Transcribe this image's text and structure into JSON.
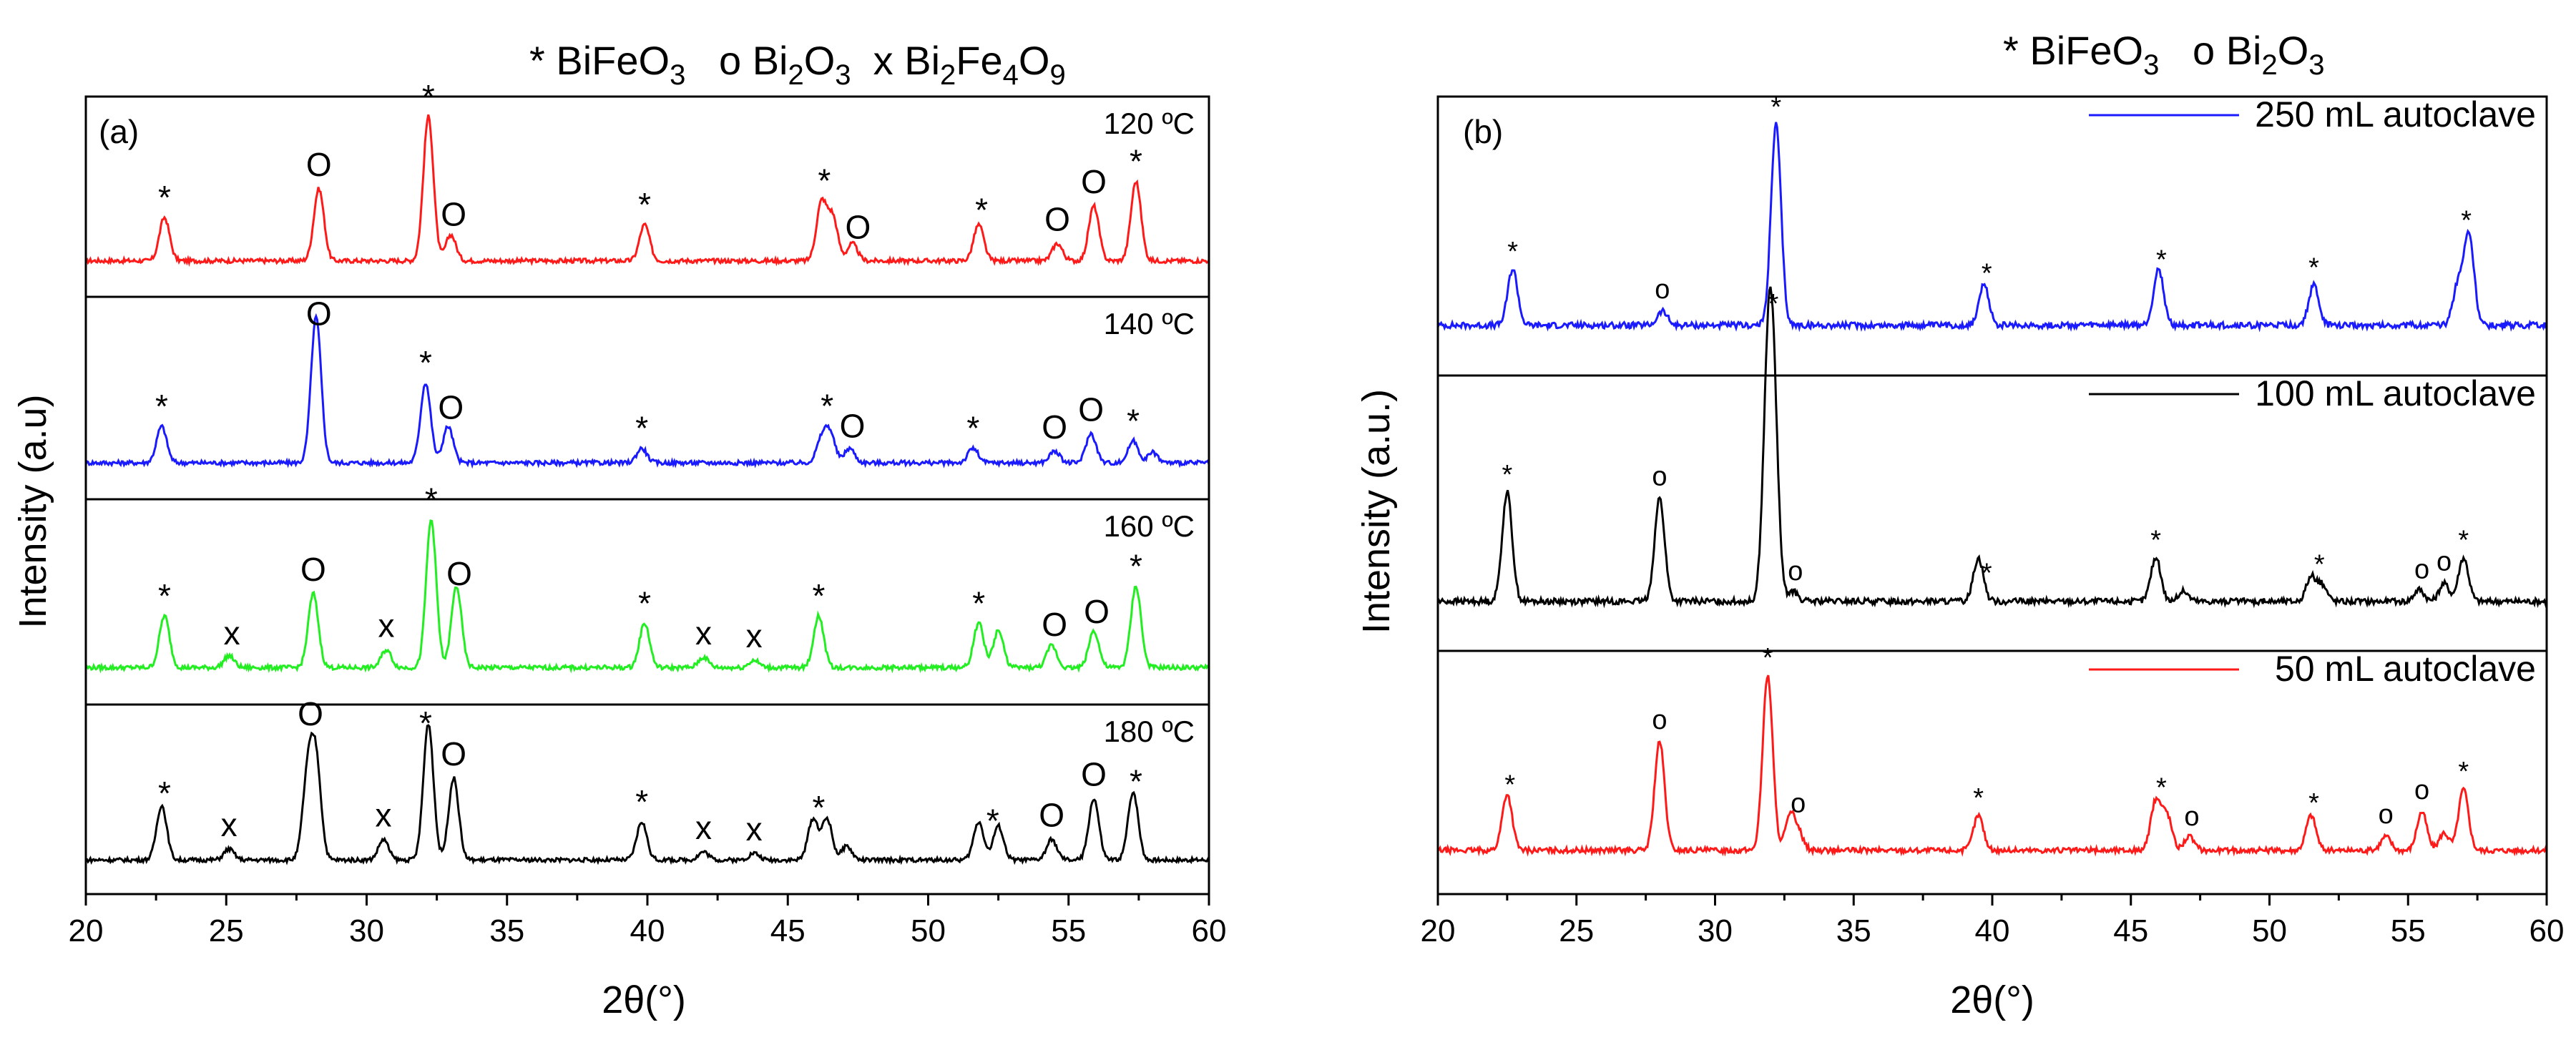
{
  "chart_data": [
    {
      "type": "line",
      "panel_label": "(a)",
      "title": {
        "parts": [
          "* BiFeO",
          "3",
          "   o Bi",
          "2",
          "O",
          "3",
          "  x Bi",
          "2",
          "Fe",
          "4",
          "O",
          "9"
        ]
      },
      "xlabel": "2θ(°)",
      "ylabel": "Intensity (a.u)",
      "xlim": [
        20,
        60
      ],
      "xticks": [
        "20",
        "25",
        "30",
        "35",
        "40",
        "45",
        "50",
        "55",
        "60"
      ],
      "series": [
        {
          "name": "120 ºC",
          "color": "#ff1a1a",
          "peaks": [
            [
              22.8,
              0.3
            ],
            [
              28.3,
              0.5
            ],
            [
              32.2,
              1.0
            ],
            [
              33.0,
              0.18
            ],
            [
              39.9,
              0.25
            ],
            [
              46.2,
              0.4
            ],
            [
              46.6,
              0.3
            ],
            [
              47.3,
              0.12
            ],
            [
              51.8,
              0.25
            ],
            [
              54.6,
              0.12
            ],
            [
              55.9,
              0.38
            ],
            [
              57.4,
              0.55
            ]
          ],
          "markers": [
            [
              "*",
              22.8
            ],
            [
              "O",
              28.3
            ],
            [
              "*",
              32.2
            ],
            [
              "O",
              33.1
            ],
            [
              "*",
              39.9
            ],
            [
              "*",
              46.3
            ],
            [
              "O",
              47.5
            ],
            [
              "*",
              51.9
            ],
            [
              "O",
              54.6
            ],
            [
              "O",
              55.9
            ],
            [
              "*",
              57.4
            ]
          ]
        },
        {
          "name": "140 ºC",
          "color": "#1a1aff",
          "peaks": [
            [
              22.7,
              0.25
            ],
            [
              28.2,
              1.0
            ],
            [
              32.1,
              0.55
            ],
            [
              32.9,
              0.25
            ],
            [
              39.8,
              0.1
            ],
            [
              46.2,
              0.15
            ],
            [
              46.5,
              0.2
            ],
            [
              47.2,
              0.1
            ],
            [
              51.6,
              0.1
            ],
            [
              54.5,
              0.08
            ],
            [
              55.8,
              0.2
            ],
            [
              57.3,
              0.15
            ],
            [
              58.0,
              0.07
            ]
          ],
          "markers": [
            [
              "*",
              22.7
            ],
            [
              "O",
              28.3
            ],
            [
              "*",
              32.1
            ],
            [
              "O",
              33.0
            ],
            [
              "*",
              39.8
            ],
            [
              "*",
              46.4
            ],
            [
              "O",
              47.3
            ],
            [
              "*",
              51.6
            ],
            [
              "O",
              54.5
            ],
            [
              "O",
              55.8
            ],
            [
              "*",
              57.3
            ]
          ]
        },
        {
          "name": "160 ºC",
          "color": "#22ee22",
          "peaks": [
            [
              22.8,
              0.35
            ],
            [
              25.1,
              0.08
            ],
            [
              28.1,
              0.5
            ],
            [
              30.7,
              0.12
            ],
            [
              32.3,
              1.0
            ],
            [
              33.2,
              0.55
            ],
            [
              39.9,
              0.3
            ],
            [
              42.0,
              0.07
            ],
            [
              43.8,
              0.05
            ],
            [
              46.1,
              0.35
            ],
            [
              51.8,
              0.3
            ],
            [
              52.5,
              0.25
            ],
            [
              54.4,
              0.15
            ],
            [
              55.9,
              0.25
            ],
            [
              57.4,
              0.55
            ]
          ],
          "markers": [
            [
              "*",
              22.8
            ],
            [
              "x",
              25.2
            ],
            [
              "O",
              28.1
            ],
            [
              "x",
              30.7
            ],
            [
              "*",
              32.3
            ],
            [
              "O",
              33.3
            ],
            [
              "*",
              39.9
            ],
            [
              "x",
              42.0
            ],
            [
              "x",
              43.8
            ],
            [
              "*",
              46.1
            ],
            [
              "*",
              51.8
            ],
            [
              "O",
              54.5
            ],
            [
              "O",
              56.0
            ],
            [
              "*",
              57.4
            ]
          ]
        },
        {
          "name": "180 ºC",
          "color": "#000000",
          "peaks": [
            [
              22.7,
              0.4
            ],
            [
              25.1,
              0.08
            ],
            [
              27.9,
              0.6
            ],
            [
              28.2,
              0.7
            ],
            [
              30.6,
              0.15
            ],
            [
              32.2,
              1.0
            ],
            [
              33.1,
              0.6
            ],
            [
              39.8,
              0.28
            ],
            [
              42.0,
              0.06
            ],
            [
              43.8,
              0.05
            ],
            [
              45.9,
              0.3
            ],
            [
              46.4,
              0.3
            ],
            [
              47.1,
              0.1
            ],
            [
              51.8,
              0.28
            ],
            [
              52.5,
              0.25
            ],
            [
              54.4,
              0.15
            ],
            [
              55.9,
              0.45
            ],
            [
              57.3,
              0.5
            ]
          ],
          "markers": [
            [
              "*",
              22.8
            ],
            [
              "x",
              25.1
            ],
            [
              "O",
              28.0
            ],
            [
              "x",
              30.6
            ],
            [
              "*",
              32.1
            ],
            [
              "O",
              33.1
            ],
            [
              "*",
              39.8
            ],
            [
              "x",
              42.0
            ],
            [
              "x",
              43.8
            ],
            [
              "*",
              46.1
            ],
            [
              "*",
              52.3
            ],
            [
              "O",
              54.4
            ],
            [
              "O",
              55.9
            ],
            [
              "*",
              57.4
            ]
          ]
        }
      ]
    },
    {
      "type": "line",
      "panel_label": "(b)",
      "title": {
        "parts": [
          "* BiFeO",
          "3",
          "   o Bi",
          "2",
          "O",
          "3"
        ]
      },
      "xlabel": "2θ(°)",
      "ylabel": "Intensity (a.u.)",
      "xlim": [
        20,
        60
      ],
      "xticks": [
        "20",
        "25",
        "30",
        "35",
        "40",
        "45",
        "50",
        "55",
        "60"
      ],
      "series": [
        {
          "name": "250 mL autoclave",
          "color": "#1a1aff",
          "peaks": [
            [
              22.7,
              0.28
            ],
            [
              28.1,
              0.07
            ],
            [
              32.2,
              1.0
            ],
            [
              39.7,
              0.2
            ],
            [
              46.0,
              0.28
            ],
            [
              51.6,
              0.2
            ],
            [
              56.8,
              0.2
            ],
            [
              57.2,
              0.45
            ]
          ],
          "markers": [
            [
              "*",
              22.7
            ],
            [
              "o",
              28.1
            ],
            [
              "*",
              32.2
            ],
            [
              "*",
              39.8
            ],
            [
              "*",
              46.1
            ],
            [
              "*",
              51.6
            ],
            [
              "*",
              57.1
            ]
          ]
        },
        {
          "name": "100 mL autoclave",
          "color": "#000000",
          "peaks": [
            [
              22.5,
              0.55
            ],
            [
              28.0,
              0.52
            ],
            [
              31.9,
              0.95
            ],
            [
              32.1,
              0.9
            ],
            [
              32.8,
              0.05
            ],
            [
              39.5,
              0.22
            ],
            [
              45.9,
              0.22
            ],
            [
              46.9,
              0.05
            ],
            [
              51.5,
              0.12
            ],
            [
              51.9,
              0.08
            ],
            [
              55.4,
              0.06
            ],
            [
              56.3,
              0.09
            ],
            [
              57.0,
              0.22
            ]
          ],
          "markers": [
            [
              "*",
              22.5
            ],
            [
              "o",
              28.0
            ],
            [
              "*",
              32.1
            ],
            [
              "o",
              32.9
            ],
            [
              "*",
              39.8
            ],
            [
              "*",
              45.9
            ],
            [
              "*",
              51.8
            ],
            [
              "o",
              55.5
            ],
            [
              "o",
              56.3
            ],
            [
              "*",
              57.0
            ]
          ]
        },
        {
          "name": "50 mL autoclave",
          "color": "#ff1a1a",
          "peaks": [
            [
              22.5,
              0.32
            ],
            [
              28.0,
              0.62
            ],
            [
              31.9,
              1.0
            ],
            [
              32.7,
              0.18
            ],
            [
              33.0,
              0.1
            ],
            [
              39.5,
              0.2
            ],
            [
              45.9,
              0.28
            ],
            [
              46.3,
              0.2
            ],
            [
              47.1,
              0.08
            ],
            [
              51.5,
              0.2
            ],
            [
              54.2,
              0.08
            ],
            [
              55.5,
              0.22
            ],
            [
              56.3,
              0.1
            ],
            [
              57.0,
              0.35
            ]
          ],
          "markers": [
            [
              "*",
              22.6
            ],
            [
              "o",
              28.0
            ],
            [
              "*",
              31.9
            ],
            [
              "o",
              33.0
            ],
            [
              "*",
              39.5
            ],
            [
              "*",
              46.1
            ],
            [
              "o",
              47.2
            ],
            [
              "*",
              51.6
            ],
            [
              "o",
              54.2
            ],
            [
              "o",
              55.5
            ],
            [
              "*",
              57.0
            ]
          ]
        }
      ]
    }
  ]
}
